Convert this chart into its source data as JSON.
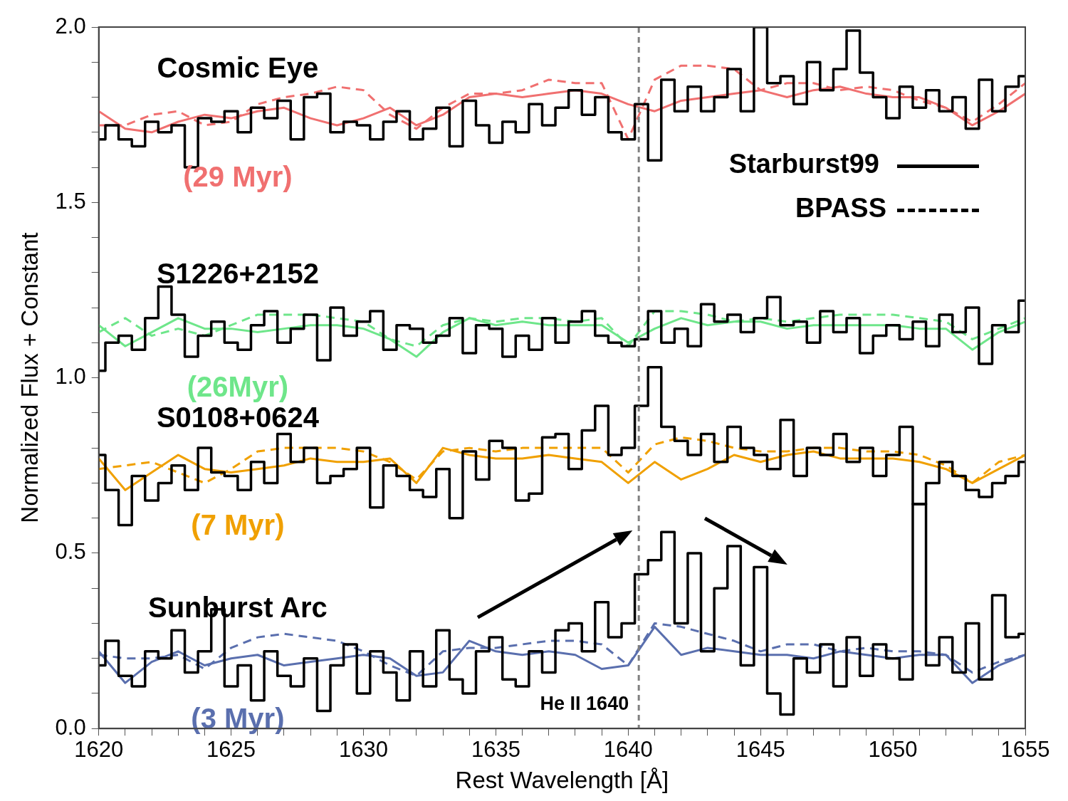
{
  "chart_data": {
    "type": "line",
    "xlabel": "Rest Wavelength [Å]",
    "ylabel": "Normalized Flux + Constant",
    "xlim": [
      1620,
      1655
    ],
    "ylim": [
      0,
      2
    ],
    "xticks": [
      1620,
      {
        "value": 1621,
        "label": null
      },
      {
        "value": 1622,
        "label": null
      },
      {
        "value": 1623,
        "label": null
      },
      {
        "value": 1624,
        "label": null
      },
      1625,
      {
        "value": 1626,
        "label": null
      },
      {
        "value": 1627,
        "label": null
      },
      {
        "value": 1628,
        "label": null
      },
      {
        "value": 1629,
        "label": null
      },
      1630,
      {
        "value": 1631,
        "label": null
      },
      {
        "value": 1632,
        "label": null
      },
      {
        "value": 1633,
        "label": null
      },
      {
        "value": 1634,
        "label": null
      },
      1635,
      {
        "value": 1636,
        "label": null
      },
      {
        "value": 1637,
        "label": null
      },
      {
        "value": 1638,
        "label": null
      },
      {
        "value": 1639,
        "label": null
      },
      1640,
      {
        "value": 1641,
        "label": null
      },
      {
        "value": 1642,
        "label": null
      },
      {
        "value": 1643,
        "label": null
      },
      {
        "value": 1644,
        "label": null
      },
      1645,
      {
        "value": 1646,
        "label": null
      },
      {
        "value": 1647,
        "label": null
      },
      {
        "value": 1648,
        "label": null
      },
      {
        "value": 1649,
        "label": null
      },
      1650,
      {
        "value": 1651,
        "label": null
      },
      {
        "value": 1652,
        "label": null
      },
      {
        "value": 1653,
        "label": null
      },
      {
        "value": 1654,
        "label": null
      },
      1655
    ],
    "yticks": [
      {
        "value": 0,
        "label": "0.0"
      },
      {
        "value": 0.1,
        "label": null
      },
      {
        "value": 0.2,
        "label": null
      },
      {
        "value": 0.3,
        "label": null
      },
      {
        "value": 0.4,
        "label": null
      },
      {
        "value": 0.5,
        "label": "0.5"
      },
      {
        "value": 0.6,
        "label": null
      },
      {
        "value": 0.7,
        "label": null
      },
      {
        "value": 0.8,
        "label": null
      },
      {
        "value": 0.9,
        "label": null
      },
      {
        "value": 1,
        "label": "1.0"
      },
      {
        "value": 1.1,
        "label": null
      },
      {
        "value": 1.2,
        "label": null
      },
      {
        "value": 1.3,
        "label": null
      },
      {
        "value": 1.4,
        "label": null
      },
      {
        "value": 1.5,
        "label": "1.5"
      },
      {
        "value": 1.6,
        "label": null
      },
      {
        "value": 1.7,
        "label": null
      },
      {
        "value": 1.8,
        "label": null
      },
      {
        "value": 1.9,
        "label": null
      },
      {
        "value": 2,
        "label": "2.0"
      }
    ],
    "grid": false,
    "legend": false,
    "x": [
      1620,
      1621,
      1622,
      1623,
      1624,
      1625,
      1626,
      1627,
      1628,
      1629,
      1630,
      1631,
      1632,
      1633,
      1634,
      1635,
      1636,
      1637,
      1638,
      1639,
      1640,
      1641,
      1642,
      1643,
      1644,
      1645,
      1646,
      1647,
      1648,
      1649,
      1650,
      1651,
      1652,
      1653,
      1654,
      1655
    ],
    "ref_lines": [
      {
        "axis": "x",
        "value": 1640.4,
        "label": "He II 1640",
        "color": "#808080",
        "line_style": "dashed"
      }
    ],
    "annotations": [
      "Starburst99",
      "BPASS"
    ],
    "series": [
      {
        "name": "Cosmic Eye",
        "type": "step",
        "color": "#000000",
        "x": [
          1620,
          1620.5,
          1621,
          1621.5,
          1622,
          1622.5,
          1623,
          1623.5,
          1624,
          1624.5,
          1625,
          1625.5,
          1626,
          1626.5,
          1627,
          1627.5,
          1628,
          1628.5,
          1629,
          1629.5,
          1630,
          1630.5,
          1631,
          1631.5,
          1632,
          1632.5,
          1633,
          1633.5,
          1634,
          1634.5,
          1635,
          1635.5,
          1636,
          1636.5,
          1637,
          1637.5,
          1638,
          1638.5,
          1639,
          1639.5,
          1640,
          1640.5,
          1641,
          1641.5,
          1642,
          1642.5,
          1643,
          1643.5,
          1644,
          1644.5,
          1645,
          1645.5,
          1646,
          1646.5,
          1647,
          1647.5,
          1648,
          1648.5,
          1649,
          1649.5,
          1650,
          1650.5,
          1651,
          1651.5,
          1652,
          1652.5,
          1653,
          1653.5,
          1654,
          1654.5,
          1655
        ],
        "values": [
          1.68,
          1.72,
          1.68,
          1.66,
          1.73,
          1.7,
          1.72,
          1.6,
          1.74,
          1.73,
          1.76,
          1.7,
          1.77,
          1.74,
          1.79,
          1.68,
          1.8,
          1.81,
          1.7,
          1.73,
          1.72,
          1.68,
          1.73,
          1.76,
          1.68,
          1.71,
          1.77,
          1.66,
          1.79,
          1.72,
          1.67,
          1.73,
          1.7,
          1.78,
          1.72,
          1.77,
          1.82,
          1.75,
          1.8,
          1.7,
          1.68,
          1.78,
          1.62,
          1.85,
          1.76,
          1.83,
          1.76,
          1.8,
          1.88,
          1.76,
          2.0,
          1.84,
          1.86,
          1.78,
          1.9,
          1.82,
          1.88,
          1.99,
          1.87,
          1.8,
          1.74,
          1.83,
          1.77,
          1.82,
          1.76,
          1.8,
          1.71,
          1.85,
          1.76,
          1.83,
          1.86
        ]
      },
      {
        "name": "(29 Myr)",
        "color": "#f07070",
        "values": [
          1.76,
          1.71,
          1.7,
          1.73,
          1.75,
          1.74,
          1.76,
          1.77,
          1.74,
          1.72,
          1.74,
          1.77,
          1.72,
          1.75,
          1.8,
          1.81,
          1.8,
          1.81,
          1.82,
          1.81,
          1.78,
          1.76,
          1.79,
          1.8,
          1.81,
          1.82,
          1.8,
          1.82,
          1.83,
          1.81,
          1.8,
          1.8,
          1.77,
          1.72,
          1.76,
          1.81
        ]
      },
      {
        "color": "#f07070",
        "line_style": "dashed",
        "values": [
          1.72,
          1.72,
          1.75,
          1.76,
          1.72,
          1.73,
          1.78,
          1.8,
          1.81,
          1.83,
          1.82,
          1.75,
          1.71,
          1.77,
          1.81,
          1.81,
          1.82,
          1.85,
          1.84,
          1.84,
          1.68,
          1.85,
          1.89,
          1.89,
          1.88,
          1.82,
          1.84,
          1.84,
          1.82,
          1.83,
          1.82,
          1.79,
          1.77,
          1.73,
          1.78,
          1.84
        ]
      },
      {
        "name": "S1226+2152",
        "type": "step",
        "color": "#000000",
        "x": [
          1620,
          1620.5,
          1621,
          1621.5,
          1622,
          1622.5,
          1623,
          1623.5,
          1624,
          1624.5,
          1625,
          1625.5,
          1626,
          1626.5,
          1627,
          1627.5,
          1628,
          1628.5,
          1629,
          1629.5,
          1630,
          1630.5,
          1631,
          1631.5,
          1632,
          1632.5,
          1633,
          1633.5,
          1634,
          1634.5,
          1635,
          1635.5,
          1636,
          1636.5,
          1637,
          1637.5,
          1638,
          1638.5,
          1639,
          1639.5,
          1640,
          1640.5,
          1641,
          1641.5,
          1642,
          1642.5,
          1643,
          1643.5,
          1644,
          1644.5,
          1645,
          1645.5,
          1646,
          1646.5,
          1647,
          1647.5,
          1648,
          1648.5,
          1649,
          1649.5,
          1650,
          1650.5,
          1651,
          1651.5,
          1652,
          1652.5,
          1653,
          1653.5,
          1654,
          1654.5,
          1655
        ],
        "values": [
          1.02,
          1.1,
          1.12,
          1.08,
          1.17,
          1.26,
          1.18,
          1.06,
          1.12,
          1.16,
          1.1,
          1.08,
          1.15,
          1.19,
          1.1,
          1.14,
          1.18,
          1.05,
          1.2,
          1.12,
          1.16,
          1.19,
          1.08,
          1.15,
          1.14,
          1.1,
          1.12,
          1.17,
          1.07,
          1.15,
          1.14,
          1.06,
          1.12,
          1.08,
          1.17,
          1.1,
          1.16,
          1.19,
          1.12,
          1.1,
          1.09,
          1.11,
          1.19,
          1.1,
          1.14,
          1.09,
          1.21,
          1.16,
          1.18,
          1.13,
          1.17,
          1.23,
          1.15,
          1.16,
          1.1,
          1.19,
          1.13,
          1.17,
          1.07,
          1.12,
          1.15,
          1.11,
          1.16,
          1.09,
          1.18,
          1.13,
          1.2,
          1.04,
          1.15,
          1.13,
          1.22
        ]
      },
      {
        "name": "(26Myr)",
        "color": "#6ee68a",
        "values": [
          1.15,
          1.09,
          1.13,
          1.17,
          1.14,
          1.14,
          1.13,
          1.14,
          1.15,
          1.15,
          1.14,
          1.11,
          1.06,
          1.13,
          1.17,
          1.15,
          1.16,
          1.15,
          1.15,
          1.15,
          1.1,
          1.14,
          1.17,
          1.15,
          1.16,
          1.16,
          1.14,
          1.15,
          1.15,
          1.15,
          1.15,
          1.14,
          1.14,
          1.08,
          1.13,
          1.16
        ]
      },
      {
        "color": "#6ee68a",
        "line_style": "dashed",
        "values": [
          1.13,
          1.17,
          1.12,
          1.14,
          1.12,
          1.15,
          1.18,
          1.18,
          1.18,
          1.17,
          1.16,
          1.11,
          1.09,
          1.15,
          1.17,
          1.16,
          1.17,
          1.17,
          1.16,
          1.17,
          1.09,
          1.19,
          1.19,
          1.18,
          1.16,
          1.17,
          1.16,
          1.17,
          1.18,
          1.18,
          1.18,
          1.17,
          1.16,
          1.11,
          1.14,
          1.17
        ]
      },
      {
        "name": "S0108+0624",
        "type": "step",
        "color": "#000000",
        "x": [
          1620,
          1620.5,
          1621,
          1621.5,
          1622,
          1622.5,
          1623,
          1623.5,
          1624,
          1624.5,
          1625,
          1625.5,
          1626,
          1626.5,
          1627,
          1627.5,
          1628,
          1628.5,
          1629,
          1629.5,
          1630,
          1630.5,
          1631,
          1631.5,
          1632,
          1632.5,
          1633,
          1633.5,
          1634,
          1634.5,
          1635,
          1635.5,
          1636,
          1636.5,
          1637,
          1637.5,
          1638,
          1638.5,
          1639,
          1639.5,
          1640,
          1640.5,
          1641,
          1641.5,
          1642,
          1642.5,
          1643,
          1643.5,
          1644,
          1644.5,
          1645,
          1645.5,
          1646,
          1646.5,
          1647,
          1647.5,
          1648,
          1648.5,
          1649,
          1649.5,
          1650,
          1650.5,
          1651,
          1651.5,
          1652,
          1652.5,
          1653,
          1653.5,
          1654,
          1654.5,
          1655
        ],
        "values": [
          0.78,
          0.68,
          0.58,
          0.72,
          0.65,
          0.7,
          0.75,
          0.68,
          0.8,
          0.73,
          0.72,
          0.68,
          0.76,
          0.7,
          0.84,
          0.76,
          0.8,
          0.7,
          0.72,
          0.74,
          0.8,
          0.63,
          0.75,
          0.72,
          0.68,
          0.66,
          0.74,
          0.6,
          0.79,
          0.71,
          0.82,
          0.8,
          0.65,
          0.67,
          0.83,
          0.84,
          0.74,
          0.85,
          0.92,
          0.78,
          0.8,
          0.92,
          1.03,
          0.86,
          0.82,
          0.78,
          0.84,
          0.76,
          0.86,
          0.8,
          0.78,
          0.74,
          0.88,
          0.72,
          0.8,
          0.78,
          0.84,
          0.76,
          0.8,
          0.72,
          0.78,
          0.86,
          0.64,
          0.7,
          0.76,
          0.72,
          0.68,
          0.66,
          0.7,
          0.72,
          0.76
        ]
      },
      {
        "name": "(7 Myr)",
        "color": "#f0a000",
        "values": [
          0.77,
          0.68,
          0.73,
          0.78,
          0.74,
          0.73,
          0.74,
          0.75,
          0.77,
          0.76,
          0.76,
          0.77,
          0.7,
          0.8,
          0.78,
          0.77,
          0.77,
          0.78,
          0.77,
          0.76,
          0.7,
          0.76,
          0.71,
          0.74,
          0.78,
          0.76,
          0.78,
          0.79,
          0.77,
          0.77,
          0.77,
          0.76,
          0.74,
          0.7,
          0.74,
          0.78
        ]
      },
      {
        "color": "#f0a000",
        "line_style": "dashed",
        "values": [
          0.74,
          0.75,
          0.76,
          0.73,
          0.7,
          0.74,
          0.79,
          0.8,
          0.8,
          0.8,
          0.79,
          0.76,
          0.71,
          0.79,
          0.8,
          0.79,
          0.8,
          0.8,
          0.8,
          0.8,
          0.73,
          0.81,
          0.83,
          0.82,
          0.8,
          0.79,
          0.79,
          0.8,
          0.8,
          0.79,
          0.79,
          0.78,
          0.75,
          0.7,
          0.76,
          0.78
        ]
      },
      {
        "name": "Sunburst Arc",
        "type": "step",
        "color": "#000000",
        "x": [
          1620,
          1620.5,
          1621,
          1621.5,
          1622,
          1622.5,
          1623,
          1623.5,
          1624,
          1624.5,
          1625,
          1625.5,
          1626,
          1626.5,
          1627,
          1627.5,
          1628,
          1628.5,
          1629,
          1629.5,
          1630,
          1630.5,
          1631,
          1631.5,
          1632,
          1632.5,
          1633,
          1633.5,
          1634,
          1634.5,
          1635,
          1635.5,
          1636,
          1636.5,
          1637,
          1637.5,
          1638,
          1638.5,
          1639,
          1639.5,
          1640,
          1640.5,
          1641,
          1641.5,
          1642,
          1642.5,
          1643,
          1643.5,
          1644,
          1644.5,
          1645,
          1645.5,
          1646,
          1646.5,
          1647,
          1647.5,
          1648,
          1648.5,
          1649,
          1649.5,
          1650,
          1650.5,
          1651,
          1651.5,
          1652,
          1652.5,
          1653,
          1653.5,
          1654,
          1654.5,
          1655
        ],
        "values": [
          0.18,
          0.25,
          0.15,
          0.12,
          0.22,
          0.2,
          0.28,
          0.16,
          0.22,
          0.34,
          0.12,
          0.18,
          0.08,
          0.22,
          0.15,
          0.12,
          0.2,
          0.05,
          0.18,
          0.24,
          0.1,
          0.22,
          0.16,
          0.08,
          0.22,
          0.12,
          0.28,
          0.14,
          0.1,
          0.22,
          0.26,
          0.14,
          0.12,
          0.22,
          0.16,
          0.28,
          0.3,
          0.22,
          0.36,
          0.26,
          0.3,
          0.44,
          0.48,
          0.56,
          0.3,
          0.5,
          0.22,
          0.4,
          0.52,
          0.18,
          0.46,
          0.1,
          0.04,
          0.2,
          0.16,
          0.24,
          0.12,
          0.26,
          0.15,
          0.24,
          0.2,
          0.14,
          0.64,
          0.18,
          0.26,
          0.16,
          0.3,
          0.14,
          0.38,
          0.26,
          0.27
        ]
      },
      {
        "name": "(3 Myr)",
        "color": "#5a6fae",
        "values": [
          0.22,
          0.13,
          0.19,
          0.22,
          0.18,
          0.2,
          0.21,
          0.18,
          0.19,
          0.2,
          0.21,
          0.2,
          0.15,
          0.16,
          0.25,
          0.22,
          0.21,
          0.22,
          0.21,
          0.17,
          0.18,
          0.29,
          0.21,
          0.23,
          0.22,
          0.21,
          0.21,
          0.2,
          0.22,
          0.21,
          0.2,
          0.21,
          0.21,
          0.13,
          0.18,
          0.21
        ]
      },
      {
        "color": "#5a6fae",
        "line_style": "dashed",
        "values": [
          0.21,
          0.2,
          0.2,
          0.21,
          0.17,
          0.23,
          0.26,
          0.27,
          0.26,
          0.25,
          0.22,
          0.18,
          0.15,
          0.22,
          0.23,
          0.23,
          0.24,
          0.25,
          0.25,
          0.24,
          0.18,
          0.3,
          0.29,
          0.27,
          0.25,
          0.22,
          0.24,
          0.24,
          0.22,
          0.23,
          0.22,
          0.22,
          0.21,
          0.16,
          0.19,
          0.21
        ]
      }
    ]
  }
}
